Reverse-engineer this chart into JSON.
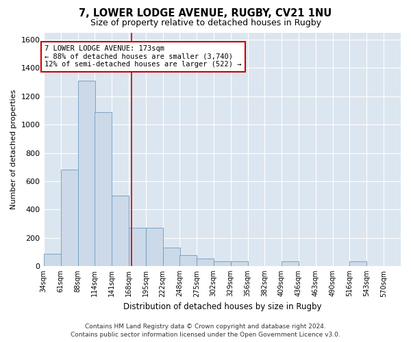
{
  "title_line1": "7, LOWER LODGE AVENUE, RUGBY, CV21 1NU",
  "title_line2": "Size of property relative to detached houses in Rugby",
  "xlabel": "Distribution of detached houses by size in Rugby",
  "ylabel": "Number of detached properties",
  "footer": "Contains HM Land Registry data © Crown copyright and database right 2024.\nContains public sector information licensed under the Open Government Licence v3.0.",
  "annotation_line1": "7 LOWER LODGE AVENUE: 173sqm",
  "annotation_line2": "← 88% of detached houses are smaller (3,740)",
  "annotation_line3": "12% of semi-detached houses are larger (522) →",
  "bar_color": "#ccd9e8",
  "bar_edge_color": "#6b9bbf",
  "redline_color": "#cc0000",
  "annotation_box_edgecolor": "#cc0000",
  "bg_color": "#dce6f0",
  "grid_color": "#ffffff",
  "categories": [
    "34sqm",
    "61sqm",
    "88sqm",
    "114sqm",
    "141sqm",
    "168sqm",
    "195sqm",
    "222sqm",
    "248sqm",
    "275sqm",
    "302sqm",
    "329sqm",
    "356sqm",
    "382sqm",
    "409sqm",
    "436sqm",
    "463sqm",
    "490sqm",
    "516sqm",
    "543sqm",
    "570sqm"
  ],
  "bin_starts": [
    34,
    61,
    88,
    114,
    141,
    168,
    195,
    222,
    248,
    275,
    302,
    329,
    356,
    382,
    409,
    436,
    463,
    490,
    516,
    543,
    570
  ],
  "bin_width": 27,
  "values": [
    90,
    680,
    1310,
    1090,
    500,
    270,
    270,
    130,
    80,
    55,
    35,
    35,
    0,
    0,
    35,
    0,
    0,
    0,
    35,
    0,
    0
  ],
  "ylim": [
    0,
    1650
  ],
  "yticks": [
    0,
    200,
    400,
    600,
    800,
    1000,
    1200,
    1400,
    1600
  ],
  "redline_x": 173,
  "figsize": [
    6.0,
    5.0
  ],
  "dpi": 100
}
